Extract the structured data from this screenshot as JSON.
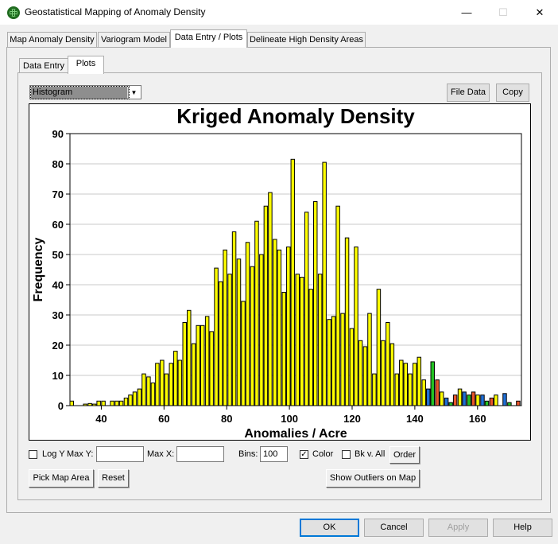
{
  "window": {
    "title": "Geostatistical Mapping of Anomaly Density",
    "minimize": "—",
    "maximize": "☐",
    "close": "✕"
  },
  "main_tabs": [
    {
      "label": "Map Anomaly Density",
      "active": false
    },
    {
      "label": "Variogram Model",
      "active": false
    },
    {
      "label": "Data Entry / Plots",
      "active": true
    },
    {
      "label": "Delineate High Density Areas",
      "active": false
    }
  ],
  "sub_tabs": [
    {
      "label": "Data Entry",
      "active": false
    },
    {
      "label": "Plots",
      "active": true
    }
  ],
  "plot_type": {
    "selected": "Histogram"
  },
  "buttons": {
    "file_data": "File Data",
    "copy": "Copy",
    "order": "Order",
    "pick_map_area": "Pick Map Area",
    "reset": "Reset",
    "show_outliers": "Show Outliers on Map",
    "ok": "OK",
    "cancel": "Cancel",
    "apply": "Apply",
    "help": "Help"
  },
  "controls": {
    "log_y_label": "Log Y",
    "log_y_checked": false,
    "max_y_label": "Max Y:",
    "max_y_value": "",
    "max_x_label": "Max X:",
    "max_x_value": "",
    "bins_label": "Bins:",
    "bins_value": "100",
    "color_label": "Color",
    "color_checked": true,
    "bk_label": "Bk v. All",
    "bk_checked": false
  },
  "colors": {
    "bar_fill": "#ffff00",
    "bar_stroke": "#000000",
    "stack_red": "#e8552a",
    "stack_green": "#22c322",
    "stack_blue": "#1f6fd6",
    "gridline": "#c8c8c8"
  },
  "chart_data": {
    "type": "bar",
    "title": "Kriged Anomaly Density",
    "xlabel": "Anomalies / Acre",
    "ylabel": "Frequency",
    "xlim": [
      30,
      174
    ],
    "ylim": [
      0,
      90
    ],
    "x_ticks": [
      40,
      60,
      80,
      100,
      120,
      140,
      160
    ],
    "y_ticks": [
      0,
      10,
      20,
      30,
      40,
      50,
      60,
      70,
      80,
      90
    ],
    "grid": "horizontal",
    "bin_width": 1.44,
    "bins": [
      {
        "x": 30.0,
        "y": 1.5
      },
      {
        "x": 34.3,
        "y": 0.5
      },
      {
        "x": 35.8,
        "y": 0.7
      },
      {
        "x": 37.2,
        "y": 0.5
      },
      {
        "x": 38.6,
        "y": 1.5
      },
      {
        "x": 40.1,
        "y": 1.5
      },
      {
        "x": 42.9,
        "y": 1.5
      },
      {
        "x": 44.4,
        "y": 1.5
      },
      {
        "x": 45.8,
        "y": 1.5
      },
      {
        "x": 47.3,
        "y": 2.5
      },
      {
        "x": 48.7,
        "y": 3.5
      },
      {
        "x": 50.1,
        "y": 4.5
      },
      {
        "x": 51.6,
        "y": 5.5
      },
      {
        "x": 53.0,
        "y": 10.5
      },
      {
        "x": 54.5,
        "y": 9.5
      },
      {
        "x": 55.9,
        "y": 7.5
      },
      {
        "x": 57.3,
        "y": 14.0
      },
      {
        "x": 58.8,
        "y": 15.0
      },
      {
        "x": 60.2,
        "y": 10.5
      },
      {
        "x": 61.7,
        "y": 14.0
      },
      {
        "x": 63.1,
        "y": 18.0
      },
      {
        "x": 64.5,
        "y": 15.0
      },
      {
        "x": 66.0,
        "y": 27.5
      },
      {
        "x": 67.4,
        "y": 31.5
      },
      {
        "x": 68.9,
        "y": 20.5
      },
      {
        "x": 70.3,
        "y": 26.5
      },
      {
        "x": 71.7,
        "y": 26.5
      },
      {
        "x": 73.2,
        "y": 29.5
      },
      {
        "x": 74.6,
        "y": 24.5
      },
      {
        "x": 76.1,
        "y": 45.5
      },
      {
        "x": 77.5,
        "y": 41.0
      },
      {
        "x": 78.9,
        "y": 51.5
      },
      {
        "x": 80.4,
        "y": 43.5
      },
      {
        "x": 81.8,
        "y": 57.5
      },
      {
        "x": 83.3,
        "y": 48.5
      },
      {
        "x": 84.7,
        "y": 34.5
      },
      {
        "x": 86.1,
        "y": 54.0
      },
      {
        "x": 87.6,
        "y": 46.0
      },
      {
        "x": 89.0,
        "y": 61.0
      },
      {
        "x": 90.5,
        "y": 50.0
      },
      {
        "x": 91.9,
        "y": 66.0
      },
      {
        "x": 93.3,
        "y": 70.5
      },
      {
        "x": 94.8,
        "y": 55.0
      },
      {
        "x": 96.2,
        "y": 51.5
      },
      {
        "x": 97.7,
        "y": 37.5
      },
      {
        "x": 99.1,
        "y": 52.5
      },
      {
        "x": 100.5,
        "y": 81.5
      },
      {
        "x": 102.0,
        "y": 43.5
      },
      {
        "x": 103.4,
        "y": 42.5
      },
      {
        "x": 104.9,
        "y": 64.0
      },
      {
        "x": 106.3,
        "y": 38.5
      },
      {
        "x": 107.7,
        "y": 67.5
      },
      {
        "x": 109.2,
        "y": 43.5
      },
      {
        "x": 110.6,
        "y": 80.5
      },
      {
        "x": 112.1,
        "y": 28.5
      },
      {
        "x": 113.5,
        "y": 29.5
      },
      {
        "x": 114.9,
        "y": 66.0
      },
      {
        "x": 116.4,
        "y": 30.5
      },
      {
        "x": 117.8,
        "y": 55.5
      },
      {
        "x": 119.3,
        "y": 25.5
      },
      {
        "x": 120.7,
        "y": 52.5
      },
      {
        "x": 122.1,
        "y": 21.5
      },
      {
        "x": 123.6,
        "y": 19.5
      },
      {
        "x": 125.0,
        "y": 30.5
      },
      {
        "x": 126.5,
        "y": 10.5
      },
      {
        "x": 127.9,
        "y": 38.5
      },
      {
        "x": 129.3,
        "y": 21.5
      },
      {
        "x": 130.8,
        "y": 27.5
      },
      {
        "x": 132.2,
        "y": 20.5
      },
      {
        "x": 133.7,
        "y": 10.5
      },
      {
        "x": 135.1,
        "y": 15.0
      },
      {
        "x": 136.5,
        "y": 14.0
      },
      {
        "x": 137.9,
        "y": 10.5
      },
      {
        "x": 139.4,
        "y": 14.0
      },
      {
        "x": 140.8,
        "y": 16.0
      },
      {
        "x": 142.3,
        "y": 8.5
      },
      {
        "x": 143.7,
        "y": 5.5
      },
      {
        "x": 145.1,
        "y": 14.5
      },
      {
        "x": 146.6,
        "y": 8.5
      },
      {
        "x": 148.0,
        "y": 4.5
      },
      {
        "x": 149.5,
        "y": 2.5
      },
      {
        "x": 150.9,
        "y": 1.0
      },
      {
        "x": 152.3,
        "y": 3.5
      },
      {
        "x": 153.8,
        "y": 5.5
      },
      {
        "x": 155.2,
        "y": 4.5
      },
      {
        "x": 156.7,
        "y": 3.5
      },
      {
        "x": 158.1,
        "y": 4.5
      },
      {
        "x": 159.5,
        "y": 3.5
      },
      {
        "x": 161.0,
        "y": 3.5
      },
      {
        "x": 162.4,
        "y": 1.5
      },
      {
        "x": 163.9,
        "y": 2.5
      },
      {
        "x": 165.3,
        "y": 3.5
      },
      {
        "x": 168.1,
        "y": 4.0
      },
      {
        "x": 169.6,
        "y": 1.0
      },
      {
        "x": 172.4,
        "y": 1.5
      }
    ]
  }
}
